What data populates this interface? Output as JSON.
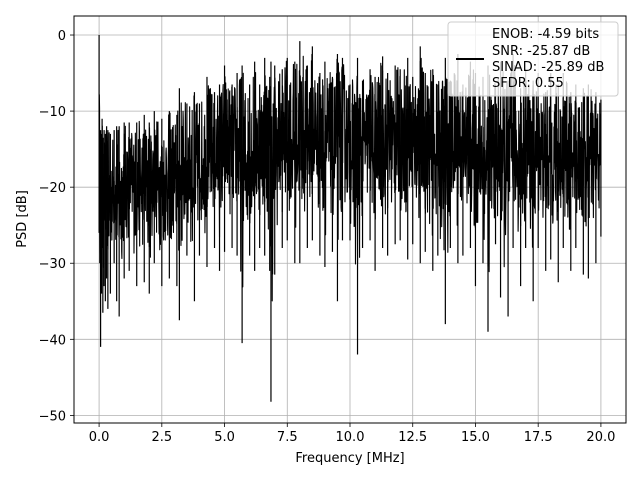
{
  "chart_data": {
    "type": "line",
    "title": "",
    "xlabel": "Frequency [MHz]",
    "ylabel": "PSD [dB]",
    "xlim": [
      -1.0,
      21.0
    ],
    "ylim": [
      -51.0,
      2.5
    ],
    "xticks": [
      0.0,
      2.5,
      5.0,
      7.5,
      10.0,
      12.5,
      15.0,
      17.5,
      20.0
    ],
    "xtick_labels": [
      "0.0",
      "2.5",
      "5.0",
      "7.5",
      "10.0",
      "12.5",
      "15.0",
      "17.5",
      "20.0"
    ],
    "yticks": [
      0,
      -10,
      -20,
      -30,
      -40,
      -50
    ],
    "ytick_labels": [
      "0",
      "−10",
      "−20",
      "−30",
      "−40",
      "−50"
    ],
    "grid": true,
    "legend_position": "top-right",
    "legend_lines": [
      "ENOB: -4.59 bits",
      "SNR: -25.87 dB",
      "SINAD: -25.89 dB",
      "SFDR: 0.55"
    ],
    "series": [
      {
        "color": "#000000",
        "x": [
          0.0,
          0.03,
          0.06,
          0.1,
          0.12,
          0.15,
          0.2,
          0.25,
          0.3,
          0.35,
          0.45,
          0.6,
          0.7,
          0.8,
          1.0,
          1.2,
          1.5,
          1.8,
          2.0,
          2.2,
          2.5,
          2.8,
          3.1,
          3.2,
          3.5,
          3.8,
          4.0,
          4.3,
          4.6,
          4.8,
          5.0,
          5.3,
          5.5,
          5.7,
          6.0,
          6.2,
          6.4,
          6.6,
          6.8,
          6.85,
          7.0,
          7.3,
          7.5,
          7.8,
          8.0,
          8.3,
          8.5,
          8.8,
          9.0,
          9.3,
          9.5,
          9.7,
          10.0,
          10.3,
          10.5,
          10.8,
          11.0,
          11.3,
          11.5,
          11.8,
          12.0,
          12.3,
          12.5,
          12.8,
          13.0,
          13.3,
          13.5,
          13.8,
          14.0,
          14.3,
          14.5,
          14.8,
          15.0,
          15.3,
          15.5,
          15.8,
          16.0,
          16.3,
          16.5,
          16.8,
          17.0,
          17.3,
          17.5,
          17.8,
          18.0,
          18.3,
          18.5,
          18.8,
          19.0,
          19.3,
          19.5,
          19.8,
          20.0
        ],
        "upper": [
          0.0,
          -14.0,
          -12.5,
          -13.0,
          -11.0,
          -13.5,
          -12.5,
          -13.0,
          -12.0,
          -12.5,
          -13.0,
          -12.5,
          -12.0,
          -12.0,
          -11.5,
          -11.5,
          -11.5,
          -10.5,
          -11.5,
          -10.0,
          -11.0,
          -10.0,
          -10.5,
          -7.0,
          -9.0,
          -7.5,
          -9.0,
          -5.5,
          -7.5,
          -6.5,
          -4.0,
          -6.5,
          -5.0,
          -4.0,
          -6.5,
          -3.5,
          -6.5,
          -3.0,
          -5.5,
          -3.5,
          -4.0,
          -4.5,
          -3.0,
          -3.5,
          -0.8,
          -4.0,
          -1.5,
          -5.0,
          -3.5,
          -5.5,
          -2.5,
          -3.0,
          -6.5,
          -3.0,
          -6.0,
          -4.5,
          -5.5,
          -2.8,
          -5.0,
          -4.0,
          -4.5,
          -3.0,
          -5.5,
          -1.5,
          -5.0,
          -4.5,
          -6.5,
          -3.0,
          -6.0,
          -2.5,
          -6.5,
          -3.5,
          -5.0,
          -5.5,
          -4.0,
          -6.5,
          -3.5,
          -6.0,
          -2.5,
          -7.0,
          -4.5,
          -6.0,
          -5.0,
          -7.5,
          -5.0,
          -6.5,
          -5.0,
          -7.5,
          -6.5,
          -7.0,
          -6.5,
          -7.5,
          -8.5
        ],
        "lower": [
          -26.0,
          -30.0,
          -41.0,
          -34.0,
          -28.0,
          -36.5,
          -33.0,
          -35.0,
          -32.0,
          -36.0,
          -34.0,
          -30.0,
          -35.0,
          -37.0,
          -32.0,
          -31.0,
          -33.0,
          -32.5,
          -34.0,
          -30.0,
          -33.0,
          -32.0,
          -33.0,
          -37.5,
          -29.0,
          -35.0,
          -29.0,
          -30.5,
          -28.0,
          -31.0,
          -28.5,
          -28.0,
          -29.0,
          -40.5,
          -29.0,
          -31.0,
          -28.0,
          -29.0,
          -31.0,
          -48.2,
          -31.5,
          -28.0,
          -27.0,
          -30.0,
          -30.0,
          -28.0,
          -27.0,
          -29.0,
          -30.5,
          -28.5,
          -35.0,
          -27.0,
          -27.0,
          -42.0,
          -28.0,
          -27.0,
          -31.0,
          -28.0,
          -29.0,
          -27.5,
          -27.0,
          -29.5,
          -27.5,
          -30.0,
          -28.5,
          -31.0,
          -29.0,
          -38.0,
          -28.0,
          -30.0,
          -29.0,
          -28.0,
          -33.0,
          -30.0,
          -39.0,
          -27.5,
          -34.5,
          -37.0,
          -28.0,
          -33.0,
          -28.0,
          -35.0,
          -28.0,
          -31.0,
          -29.5,
          -32.5,
          -28.0,
          -31.0,
          -28.0,
          -31.5,
          -32.0,
          -30.0,
          -26.5
        ]
      }
    ]
  }
}
